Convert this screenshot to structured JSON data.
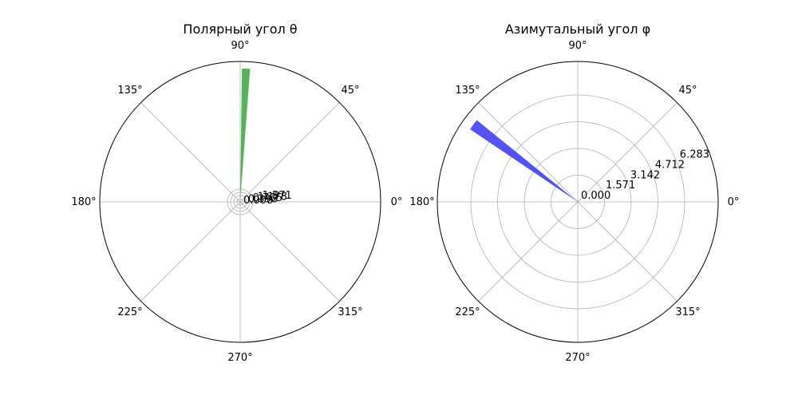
{
  "chart_data": [
    {
      "type": "polar-bar",
      "title": "Полярный угол θ",
      "angle_tick_labels": [
        "0°",
        "45°",
        "90°",
        "135°",
        "180°",
        "225°",
        "270°",
        "315°"
      ],
      "radial_tick_labels": [
        "0.000",
        "0.393",
        "0.785",
        "1.178",
        "1.571"
      ],
      "rlim": [
        0,
        30
      ],
      "bars": [
        {
          "theta_deg": 87.5,
          "width_deg": 3.5,
          "r": 28.5
        }
      ],
      "bar_color": "#4caf50",
      "grid": true
    },
    {
      "type": "polar-bar",
      "title": "Азимутальный угол φ",
      "angle_tick_labels": [
        "0°",
        "45°",
        "90°",
        "135°",
        "180°",
        "225°",
        "270°",
        "315°"
      ],
      "radial_tick_labels": [
        "0.000",
        "1.571",
        "3.142",
        "4.712",
        "6.283"
      ],
      "rlim": [
        0,
        8
      ],
      "bars": [
        {
          "theta_deg": 143.5,
          "width_deg": 5,
          "r": 7.4
        }
      ],
      "bar_color": "#4a4af4",
      "grid": true
    }
  ]
}
